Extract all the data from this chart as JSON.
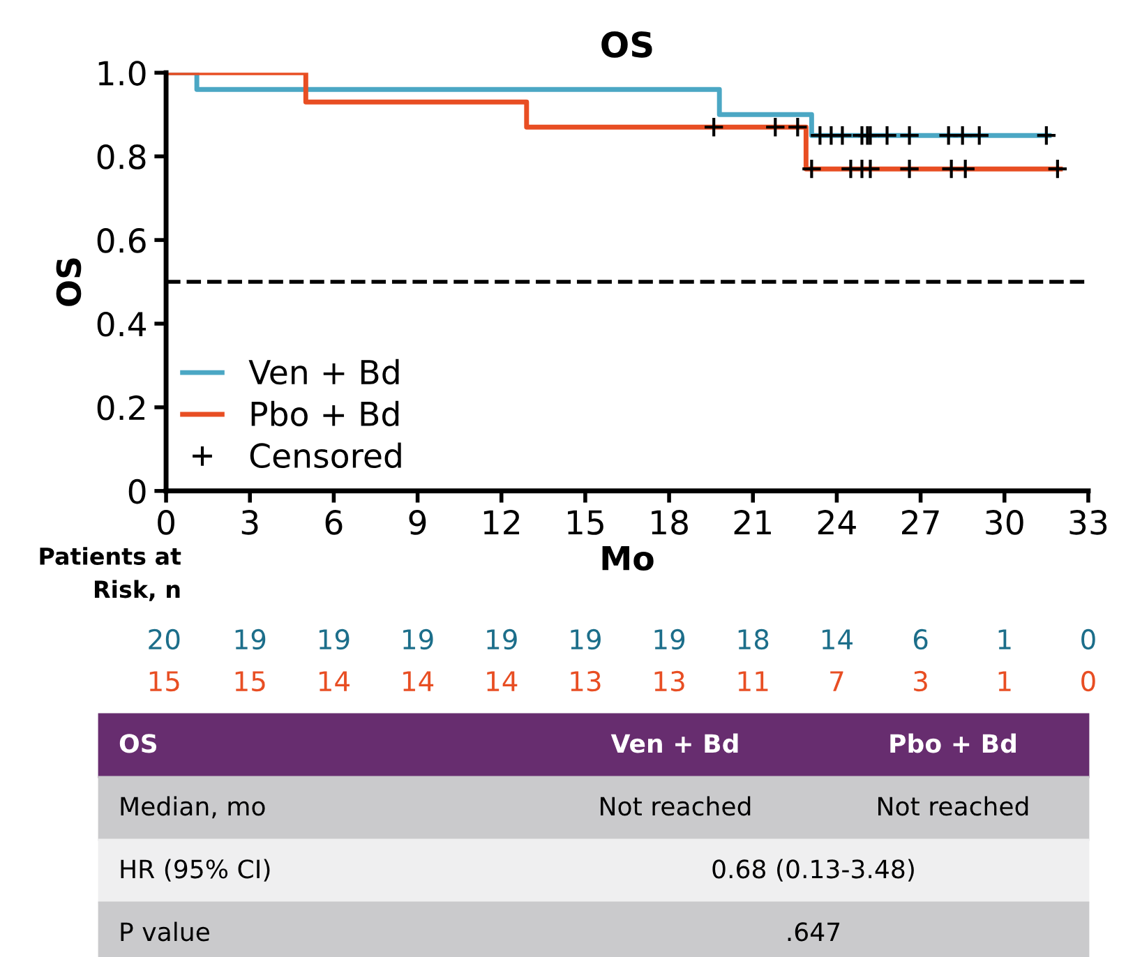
{
  "chart_data": {
    "type": "step",
    "title": "OS",
    "xlabel": "Mo",
    "ylabel": "OS",
    "xlim": [
      0,
      33
    ],
    "xticks": [
      0,
      3,
      6,
      9,
      12,
      15,
      18,
      21,
      24,
      27,
      30,
      33
    ],
    "ylim": [
      0,
      1.0
    ],
    "yticks": [
      0,
      0.2,
      0.4,
      0.6,
      0.8,
      {
        "value": 1,
        "label": "1.0"
      }
    ],
    "series": [
      {
        "name": "Ven + Bd",
        "color": "#4ba7c4",
        "x": [
          0,
          1.1,
          19.8,
          23.1,
          31.6
        ],
        "values": [
          1,
          0.96,
          0.9,
          0.85,
          0.85
        ]
      },
      {
        "name": "Pbo + Bd",
        "color": "#e84e23",
        "x": [
          0,
          5.0,
          12.9,
          22.9,
          32.0
        ],
        "values": [
          1,
          0.93,
          0.87,
          0.77,
          0.77
        ]
      },
      {
        "name": "Censored",
        "type": "scatter",
        "color": "#000000",
        "marker": "cross",
        "x": [
          23.4,
          23.8,
          24.2,
          24.9,
          25.1,
          25.2,
          25.8,
          26.6,
          28.0,
          28.5,
          29.1,
          31.5,
          19.6,
          21.8,
          22.6,
          23.1,
          24.5,
          24.9,
          25.2,
          26.6,
          28.1,
          28.6,
          31.9
        ],
        "values": [
          0.85,
          0.85,
          0.85,
          0.85,
          0.85,
          0.85,
          0.85,
          0.85,
          0.85,
          0.85,
          0.85,
          0.85,
          0.87,
          0.87,
          0.87,
          0.77,
          0.77,
          0.77,
          0.77,
          0.77,
          0.77,
          0.77,
          0.77
        ]
      }
    ],
    "ref_lines": [
      {
        "axis": "y",
        "value": 0.5,
        "color": "#000000",
        "line_style": "dashed"
      }
    ],
    "legend": "bottom left",
    "annotations": [
      "Patients at\nRisk, n",
      "20",
      "19",
      "19",
      "19",
      "19",
      "19",
      "19",
      "18",
      "14",
      "6",
      "1",
      "0",
      "15",
      "15",
      "14",
      "14",
      "14",
      "13",
      "13",
      "11",
      "7",
      "3",
      "1",
      "0",
      "OS",
      "Ven + Bd",
      "Pbo + Bd",
      "Median, mo",
      "Not reached",
      "Not reached",
      "HR (95% CI)",
      "0.68 (0.13-3.48)",
      "P value",
      ".647"
    ]
  }
}
